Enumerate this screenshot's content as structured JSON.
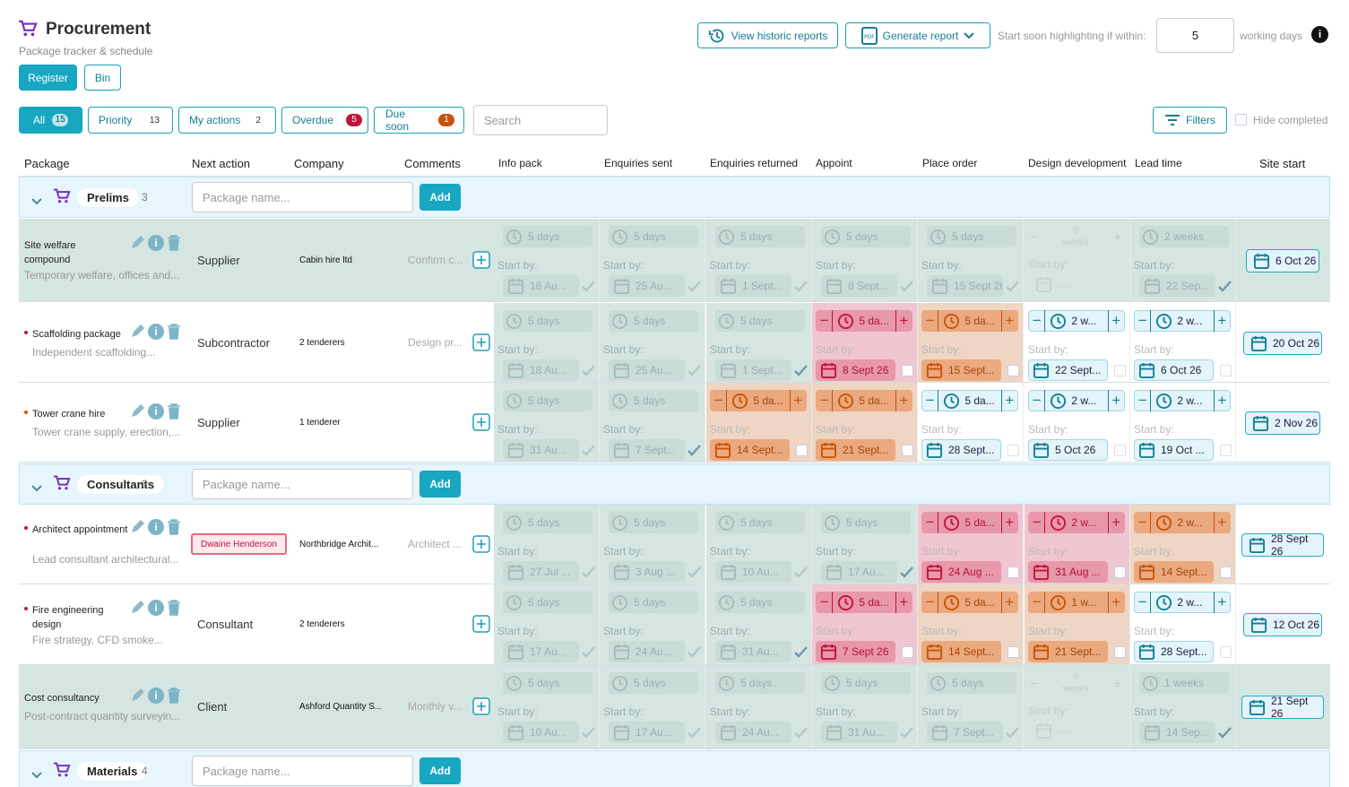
{
  "app": {
    "title": "Procurement",
    "subtitle": "Package tracker & schedule"
  },
  "views": {
    "register": "Register",
    "bin": "Bin"
  },
  "toolbar": {
    "historic": "View historic reports",
    "generate": "Generate report",
    "start_soon_label": "Start soon highlighting if within:",
    "start_soon_value": "5",
    "working_days": "working days"
  },
  "filters": {
    "chips": [
      {
        "label": "All",
        "count": "15"
      },
      {
        "label": "Priority",
        "count": "13"
      },
      {
        "label": "My actions",
        "count": "2"
      },
      {
        "label": "Overdue",
        "count": "5"
      },
      {
        "label": "Due soon",
        "count": "1"
      }
    ],
    "search_placeholder": "Search",
    "filters_btn": "Filters",
    "hide_completed": "Hide completed"
  },
  "columns": {
    "package": "Package",
    "next_action": "Next action",
    "company": "Company",
    "comments": "Comments",
    "info_pack": "Info pack",
    "enquiries_sent": "Enquiries sent",
    "enquiries_returned": "Enquiries returned",
    "appoint": "Appoint",
    "place_order": "Place order",
    "design_development": "Design development",
    "lead_time": "Lead time",
    "site_start": "Site start"
  },
  "common": {
    "start_by": "Start by:",
    "package_placeholder": "Package name...",
    "add": "Add",
    "weeks": "weeks",
    "zero": "0",
    "dash": "—"
  },
  "groups": [
    {
      "name": "Prelims",
      "count": "3"
    },
    {
      "name": "Consultants",
      "count": "3"
    },
    {
      "name": "Materials",
      "count": "4"
    }
  ],
  "rows": [
    {
      "name": "Site welfare compound",
      "desc": "Temporary welfare, offices and...",
      "next": "Supplier",
      "company": "Cabin hire ltd",
      "comment": "Confirm c...",
      "site": "6 Oct 26",
      "stages": [
        {
          "d": "5 days",
          "date": "18 Au..."
        },
        {
          "d": "5 days",
          "date": "25 Au..."
        },
        {
          "d": "5 days",
          "date": "1 Sept..."
        },
        {
          "d": "5 days",
          "date": "8 Sept..."
        },
        {
          "d": "5 days",
          "date": "15 Sept 26"
        },
        {
          "d": "",
          "date": ""
        },
        {
          "d": "2 weeks",
          "date": "22 Sep..."
        }
      ]
    },
    {
      "name": "Scaffolding package",
      "desc": "Independent scaffolding...",
      "next": "Subcontractor",
      "company": "2 tenderers",
      "comment": "Design pr...",
      "site": "20 Oct 26",
      "stages": [
        {
          "d": "5 days",
          "date": "18 Au..."
        },
        {
          "d": "5 days",
          "date": "25 Au..."
        },
        {
          "d": "5 days",
          "date": "1 Sept..."
        },
        {
          "d": "5 da...",
          "date": "8 Sept 26"
        },
        {
          "d": "5 da...",
          "date": "15 Sept..."
        },
        {
          "d": "2 w...",
          "date": "22 Sept..."
        },
        {
          "d": "2 w...",
          "date": "6 Oct 26"
        }
      ]
    },
    {
      "name": "Tower crane hire",
      "desc": "Tower crane supply, erection,...",
      "next": "Supplier",
      "company": "1 tenderer",
      "comment": "",
      "site": "2 Nov 26",
      "stages": [
        {
          "d": "5 days",
          "date": "31 Au..."
        },
        {
          "d": "5 days",
          "date": "7 Sept..."
        },
        {
          "d": "5 da...",
          "date": "14 Sept..."
        },
        {
          "d": "5 da...",
          "date": "21 Sept..."
        },
        {
          "d": "5 da...",
          "date": "28 Sept..."
        },
        {
          "d": "2 w...",
          "date": "5 Oct 26"
        },
        {
          "d": "2 w...",
          "date": "19 Oct ..."
        }
      ]
    },
    {
      "name": "Architect appointment",
      "desc": "Lead consultant architectural...",
      "next": "Dwaine Henderson",
      "company": "Northbridge Archit...",
      "comment": "Architect ...",
      "site": "28 Sept 26",
      "stages": [
        {
          "d": "5 days",
          "date": "27 Jul ..."
        },
        {
          "d": "5 days",
          "date": "3 Aug ..."
        },
        {
          "d": "5 days",
          "date": "10 Au..."
        },
        {
          "d": "5 days",
          "date": "17 Au..."
        },
        {
          "d": "5 da...",
          "date": "24 Aug ..."
        },
        {
          "d": "2 w...",
          "date": "31 Aug ..."
        },
        {
          "d": "2 w...",
          "date": "14 Sept..."
        }
      ]
    },
    {
      "name": "Fire engineering design",
      "desc": "Fire strategy, CFD smoke...",
      "next": "Consultant",
      "company": "2 tenderers",
      "comment": "",
      "site": "12 Oct 26",
      "stages": [
        {
          "d": "5 days",
          "date": "17 Au..."
        },
        {
          "d": "5 days",
          "date": "24 Au..."
        },
        {
          "d": "5 days",
          "date": "31 Au..."
        },
        {
          "d": "5 da...",
          "date": "7 Sept 26"
        },
        {
          "d": "5 da...",
          "date": "14 Sept..."
        },
        {
          "d": "1 w...",
          "date": "21 Sept..."
        },
        {
          "d": "2 w...",
          "date": "28 Sept..."
        }
      ]
    },
    {
      "name": "Cost consultancy",
      "desc": "Post-contract quantity surveyin...",
      "next": "Client",
      "company": "Ashford Quantity S...",
      "comment": "Monthly v...",
      "site": "21 Sept 26",
      "stages": [
        {
          "d": "5 days",
          "date": "10 Au..."
        },
        {
          "d": "5 days",
          "date": "17 Au..."
        },
        {
          "d": "5 days",
          "date": "24 Au..."
        },
        {
          "d": "5 days",
          "date": "31 Au..."
        },
        {
          "d": "5 days",
          "date": "7 Sept..."
        },
        {
          "d": "",
          "date": ""
        },
        {
          "d": "1 weeks",
          "date": "14 Sep..."
        }
      ]
    }
  ],
  "colors": {
    "accent": "#17a7c1",
    "overdue": "#c0143c",
    "due_soon": "#d35400",
    "purple": "#7b2cbf"
  }
}
